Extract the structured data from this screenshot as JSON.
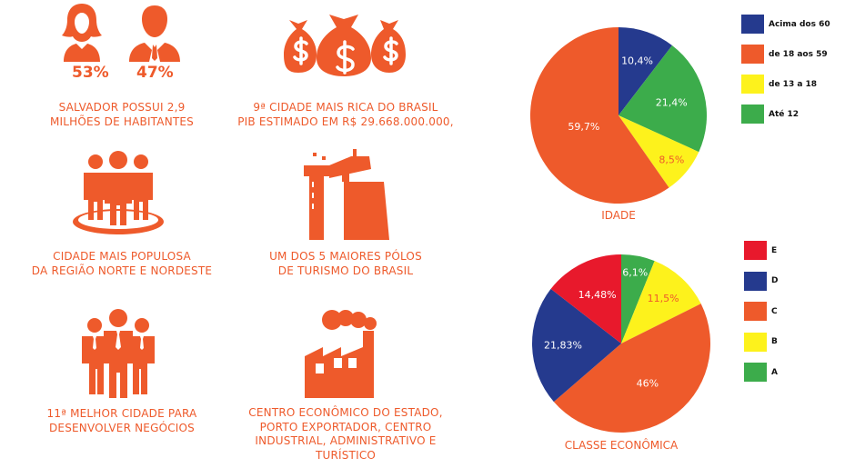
{
  "colors": {
    "orange": "#ee5a2b",
    "blue": "#253a8e",
    "yellow": "#fdf21c",
    "green": "#3cac4b",
    "red": "#e8192c"
  },
  "icons": {
    "population_gender": "women-men-icon",
    "wealth": "money-bags-icon",
    "crowd": "people-group-icon",
    "tourism": "lighthouse-icon",
    "business": "business-people-icon",
    "industry": "factory-icon"
  },
  "facts": {
    "women_pct": "53%",
    "men_pct": "47%",
    "population_caption": [
      "SALVADOR POSSUI 2,9",
      "MILHÕES DE HABITANTES"
    ],
    "wealth_caption": [
      "9ª CIDADE MAIS RICA DO BRASIL",
      "PIB ESTIMADO EM R$ 29.668.000.000,"
    ],
    "populous_caption": [
      "CIDADE MAIS POPULOSA",
      "DA REGIÃO NORTE E NORDESTE"
    ],
    "tourism_caption": [
      "UM DOS 5 MAIORES PÓLOS",
      "DE TURISMO DO BRASIL"
    ],
    "business_caption": [
      "11ª MELHOR CIDADE PARA",
      "DESENVOLVER NEGÓCIOS"
    ],
    "economy_caption": [
      "CENTRO ECONÔMICO DO ESTADO,",
      "PORTO EXPORTADOR, CENTRO",
      "INDUSTRIAL, ADMINISTRATIVO E",
      "TURÍSTICO"
    ]
  },
  "chart_data": [
    {
      "type": "pie",
      "title": "IDADE",
      "slices": [
        {
          "name": "Acima dos 60",
          "value": 10.4,
          "label": "10,4%",
          "color": "#253a8e",
          "label_color": "#ffffff"
        },
        {
          "name": "Até 12",
          "value": 21.4,
          "label": "21,4%",
          "color": "#3cac4b",
          "label_color": "#ffffff"
        },
        {
          "name": "de 13 a 18",
          "value": 8.5,
          "label": "8,5%",
          "color": "#fdf21c",
          "label_color": "#ee5a2b"
        },
        {
          "name": "de 18 aos 59",
          "value": 59.7,
          "label": "59,7%",
          "color": "#ee5a2b",
          "label_color": "#ffffff"
        }
      ],
      "legend": [
        {
          "name": "Acima dos 60",
          "color": "#253a8e"
        },
        {
          "name": "de 18 aos 59",
          "color": "#ee5a2b"
        },
        {
          "name": "de 13 a 18",
          "color": "#fdf21c"
        },
        {
          "name": "Até 12",
          "color": "#3cac4b"
        }
      ],
      "legend_position": "right"
    },
    {
      "type": "pie",
      "title": "CLASSE ECONÔMICA",
      "slices": [
        {
          "name": "A",
          "value": 6.1,
          "label": "6,1%",
          "color": "#3cac4b",
          "label_color": "#ffffff"
        },
        {
          "name": "B",
          "value": 11.5,
          "label": "11,5%",
          "color": "#fdf21c",
          "label_color": "#ee5a2b"
        },
        {
          "name": "C",
          "value": 46,
          "label": "46%",
          "color": "#ee5a2b",
          "label_color": "#ffffff"
        },
        {
          "name": "D",
          "value": 21.83,
          "label": "21,83%",
          "color": "#253a8e",
          "label_color": "#ffffff"
        },
        {
          "name": "E",
          "value": 14.48,
          "label": "14,48%",
          "color": "#e8192c",
          "label_color": "#ffffff"
        }
      ],
      "legend": [
        {
          "name": "E",
          "color": "#e8192c"
        },
        {
          "name": "D",
          "color": "#253a8e"
        },
        {
          "name": "C",
          "color": "#ee5a2b"
        },
        {
          "name": "B",
          "color": "#fdf21c"
        },
        {
          "name": "A",
          "color": "#3cac4b"
        }
      ],
      "legend_position": "right"
    }
  ]
}
